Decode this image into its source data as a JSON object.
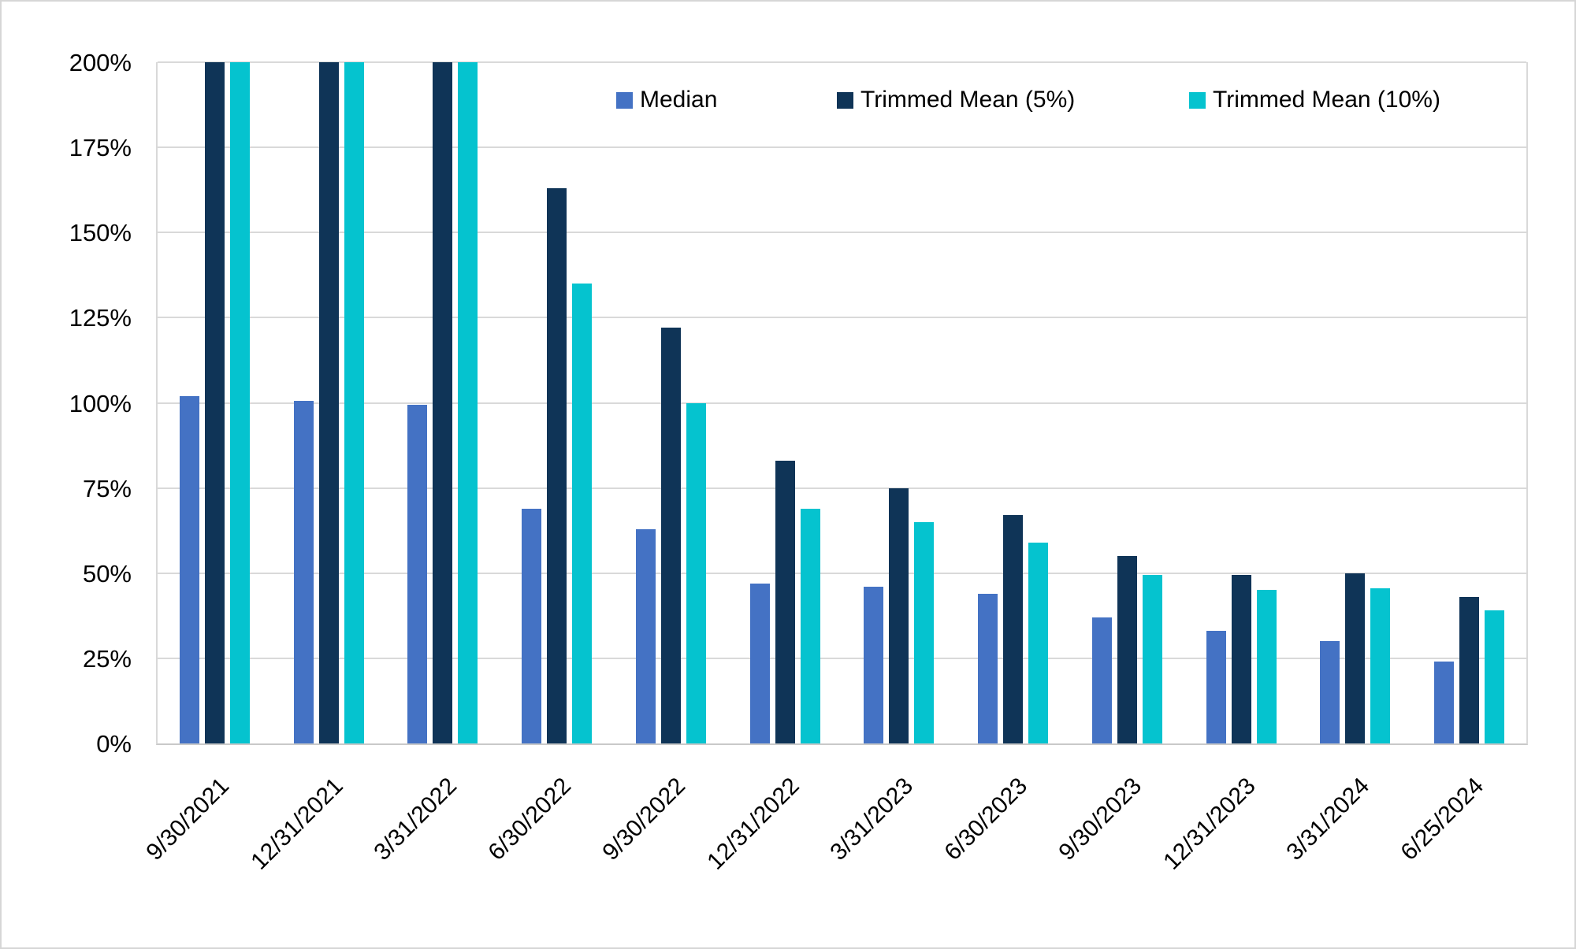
{
  "chart_data": {
    "type": "bar",
    "title": "",
    "xlabel": "",
    "ylabel": "",
    "categories": [
      "9/30/2021",
      "12/31/2021",
      "3/31/2022",
      "6/30/2022",
      "9/30/2022",
      "12/31/2022",
      "3/31/2023",
      "6/30/2023",
      "9/30/2023",
      "12/31/2023",
      "3/31/2024",
      "6/25/2024"
    ],
    "series": [
      {
        "name": "Median",
        "color": "#4472C4",
        "values": [
          102,
          100.5,
          99.5,
          69,
          63,
          47,
          46,
          44,
          37,
          33,
          30,
          24
        ]
      },
      {
        "name": "Trimmed Mean (5%)",
        "color": "#0F3457",
        "values": [
          ">200",
          ">200",
          ">200",
          163,
          122,
          83,
          75,
          67,
          55,
          49.5,
          50,
          43
        ]
      },
      {
        "name": "Trimmed Mean (10%)",
        "color": "#05C3CF",
        "values": [
          ">200",
          ">200",
          ">200",
          135,
          100,
          69,
          65,
          59,
          49.5,
          45,
          45.5,
          39
        ]
      }
    ],
    "ylim": [
      0,
      200
    ],
    "ytick_labels": [
      "0%",
      "25%",
      "50%",
      "75%",
      "100%",
      "125%",
      "150%",
      "175%",
      "200%"
    ],
    "grid": "horizontal",
    "legend_position": "top",
    "clipped_note": "Values listed as \">200\" are bars clipped at the 200% axis maximum (they run off the top of the plot)."
  },
  "colors": {
    "gridline": "#D9D9D9",
    "axis_line": "#C9C9C9",
    "frame_border": "#D6D6D6",
    "text": "#000000"
  }
}
